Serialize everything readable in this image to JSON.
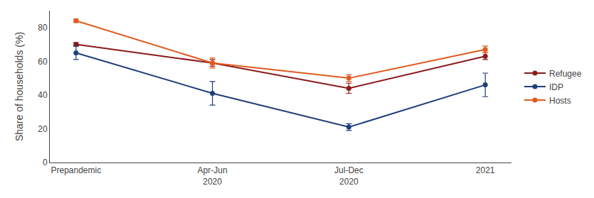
{
  "chart_data": {
    "type": "line",
    "ylabel": "Share of households (%)",
    "categories": [
      "Prepandemic",
      "Apr-Jun\n2020",
      "Jul-Dec\n2020",
      "2021"
    ],
    "series": [
      {
        "name": "Refugee",
        "color": "#8B1A1A",
        "marker": "circle",
        "values": [
          70,
          59,
          44,
          63
        ],
        "errors": [
          1,
          2,
          3,
          2
        ]
      },
      {
        "name": "IDP",
        "color": "#1F3E7A",
        "marker": "circle",
        "values": [
          65,
          41,
          21,
          46
        ],
        "errors": [
          4,
          7,
          2,
          7
        ]
      },
      {
        "name": "Hosts",
        "color": "#E05A1E",
        "marker": "circle",
        "values": [
          84,
          59,
          50,
          67
        ],
        "errors": [
          1,
          3,
          2,
          2
        ]
      }
    ],
    "ylim": [
      0,
      90
    ],
    "yticks": [
      0,
      20,
      40,
      60,
      80
    ],
    "grid": false,
    "legend": "right"
  }
}
